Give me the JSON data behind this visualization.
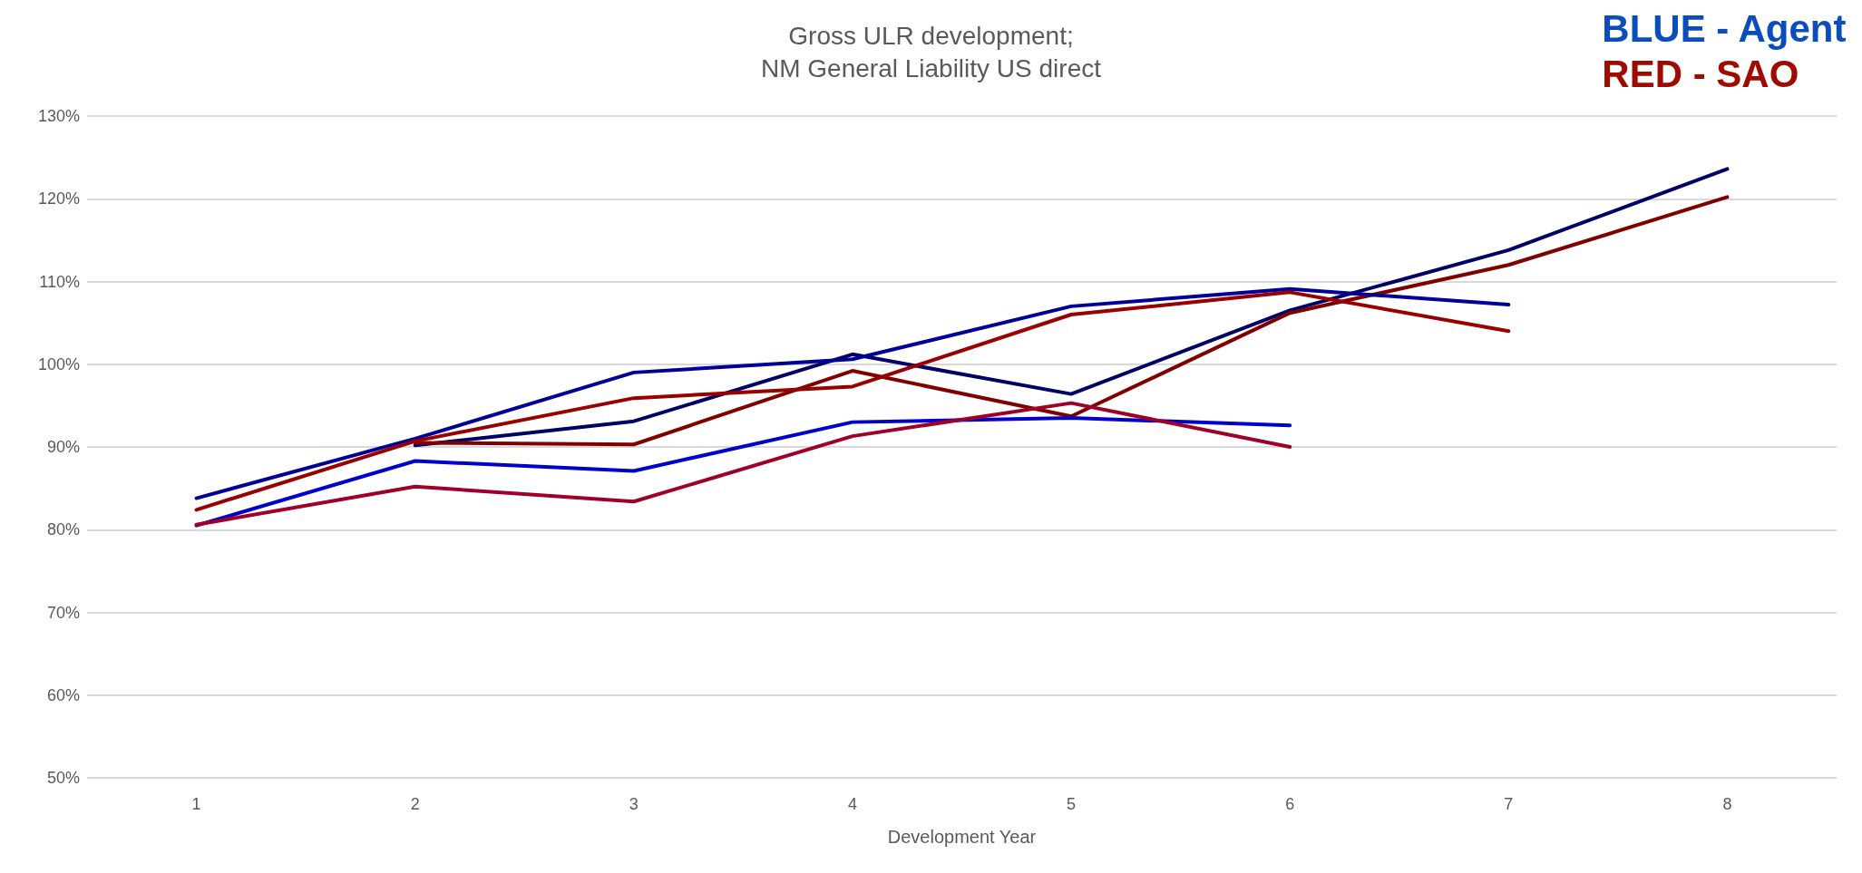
{
  "chart_data": {
    "type": "line",
    "title": "Gross ULR development;\nNM General Liability US direct",
    "xlabel": "Development Year",
    "annotations": [
      "BLUE - Agent",
      "RED - SAO"
    ],
    "categories": [
      "1",
      "2",
      "3",
      "4",
      "5",
      "6",
      "7",
      "8"
    ],
    "series": [
      {
        "color": "#000066",
        "values": [
          null,
          90.2,
          93.1,
          101.2,
          96.4,
          106.5,
          113.8,
          123.6
        ]
      },
      {
        "color": "#800000",
        "values": [
          null,
          90.5,
          90.3,
          99.2,
          93.7,
          106.2,
          112.0,
          120.2
        ]
      },
      {
        "color": "#000099",
        "values": [
          83.8,
          91.0,
          99.0,
          100.6,
          107.0,
          109.1,
          107.2,
          null
        ]
      },
      {
        "color": "#990000",
        "values": [
          82.4,
          90.7,
          95.9,
          97.3,
          106.0,
          108.7,
          104.0,
          null
        ]
      },
      {
        "color": "#0000cc",
        "values": [
          80.5,
          88.3,
          87.1,
          93.0,
          93.5,
          92.6,
          null,
          null
        ]
      },
      {
        "color": "#a00028",
        "values": [
          80.6,
          85.2,
          83.4,
          91.3,
          95.3,
          90.0,
          null,
          null
        ]
      }
    ],
    "ylim": [
      50,
      130
    ],
    "yticks": [
      {
        "value": 50,
        "label": "50%"
      },
      {
        "value": 60,
        "label": "60%"
      },
      {
        "value": 70,
        "label": "70%"
      },
      {
        "value": 80,
        "label": "80%"
      },
      {
        "value": 90,
        "label": "90%"
      },
      {
        "value": 100,
        "label": "100%"
      },
      {
        "value": 110,
        "label": "110%"
      },
      {
        "value": 120,
        "label": "120%"
      },
      {
        "value": 130,
        "label": "130%"
      }
    ],
    "grid": "y",
    "marker": "none",
    "line_style": "solid"
  }
}
